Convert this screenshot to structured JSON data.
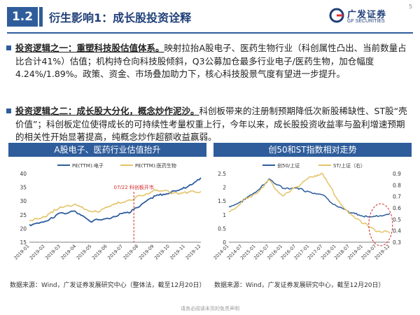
{
  "header": {
    "section_number": "1.2",
    "title": "衍生影响1：成长股投资诠释",
    "logo_cn": "广发证券",
    "logo_en": "GF SECURITIES",
    "page_number": "5",
    "brand_color": "#2f5d9c"
  },
  "paragraphs": [
    {
      "lead": "投资逻辑之一：重塑科技股估值体系。",
      "body": "映射拉抬A股电子、医药生物行业（科创属性凸出、当前数量占比合计41%）估值；机构持仓向科技股倾斜，Q3公募加仓最多行业电子/医药生物，加仓幅度4.24%/1.89%。政策、资金、市场叠加助力下，核心科技股景气度有望进一步提升。"
    },
    {
      "lead": "投资逻辑之二：成长股大分化，概念炒作泥沙。",
      "body": "科创板带来的注册制预期降低次新股稀缺性、ST股“壳价值”；科创板定位使得成长的可持续性考量权重上行，今年以来，成长股投资收益率与盈利增速预期的相关性开始显著提高，纯概念炒作超额收益赢弱。"
    }
  ],
  "charts": [
    {
      "title": "A股电子、医药行业估值抬升",
      "legend": [
        "PE(TTM):电子",
        "PE(TTM):医药生物"
      ],
      "annotation": "07/22 科创板开市",
      "source": "数据来源：Wind，广发证券发展研究中心（整体法，截至12月20日）"
    },
    {
      "title": "创50和ST指数相对走势",
      "legend": [
        "创50/上证",
        "ST/上证（右）"
      ],
      "source": "数据来源：Wind，广发证券发展研究中心，截至12月20日）"
    }
  ],
  "footer_note": "请务必阅读末页的免责声明",
  "chart_data": [
    {
      "type": "line",
      "title": "A股电子、医药行业估值抬升",
      "x": [
        "2019-01",
        "2019-02",
        "2019-03",
        "2019-04",
        "2019-05",
        "2019-06",
        "2019-07",
        "2019-08",
        "2019-09",
        "2019-10",
        "2019-11",
        "2019-12"
      ],
      "ylim": [
        15,
        40
      ],
      "yticks": [
        15,
        20,
        25,
        30,
        35,
        40
      ],
      "series": [
        {
          "name": "PE(TTM):电子",
          "color": "#2f5d9c",
          "values": [
            21,
            23,
            25.5,
            26,
            22.5,
            24,
            25.5,
            28,
            31.5,
            33,
            35,
            38.5
          ]
        },
        {
          "name": "PE(TTM):医药生物",
          "color": "#e3c469",
          "values": [
            23,
            24.5,
            28,
            29,
            25.5,
            28,
            30,
            31.5,
            34,
            33,
            32.5,
            33.5
          ]
        }
      ],
      "marker": {
        "x": "2019-07-22",
        "label": "07/22 科创板开市"
      }
    },
    {
      "type": "line",
      "title": "创50和ST指数相对走势",
      "x": [
        "2014-01",
        "2014-07",
        "2015-01",
        "2015-07",
        "2016-01",
        "2016-07",
        "2017-01",
        "2017-07",
        "2018-01",
        "2018-07",
        "2019-01",
        "2019-07",
        "2019-12"
      ],
      "ylim_left": [
        0,
        2.5
      ],
      "yticks_left": [
        0,
        0.5,
        1,
        1.5,
        2,
        2.5
      ],
      "ylim_right": [
        0.3,
        0.9
      ],
      "yticks_right": [
        0.3,
        0.4,
        0.5,
        0.6,
        0.7,
        0.8,
        0.9
      ],
      "series": [
        {
          "name": "创50/上证",
          "axis": "left",
          "color": "#2f5d9c",
          "values": [
            1.3,
            1.5,
            1.85,
            2.3,
            1.95,
            2.0,
            1.85,
            1.75,
            1.35,
            1.05,
            0.95,
            0.95,
            1.05
          ]
        },
        {
          "name": "ST/上证（右）",
          "axis": "right",
          "color": "#e3c469",
          "values": [
            0.56,
            0.66,
            0.72,
            0.84,
            0.7,
            0.78,
            0.86,
            0.9,
            0.68,
            0.55,
            0.47,
            0.4,
            0.38
          ]
        }
      ]
    }
  ]
}
